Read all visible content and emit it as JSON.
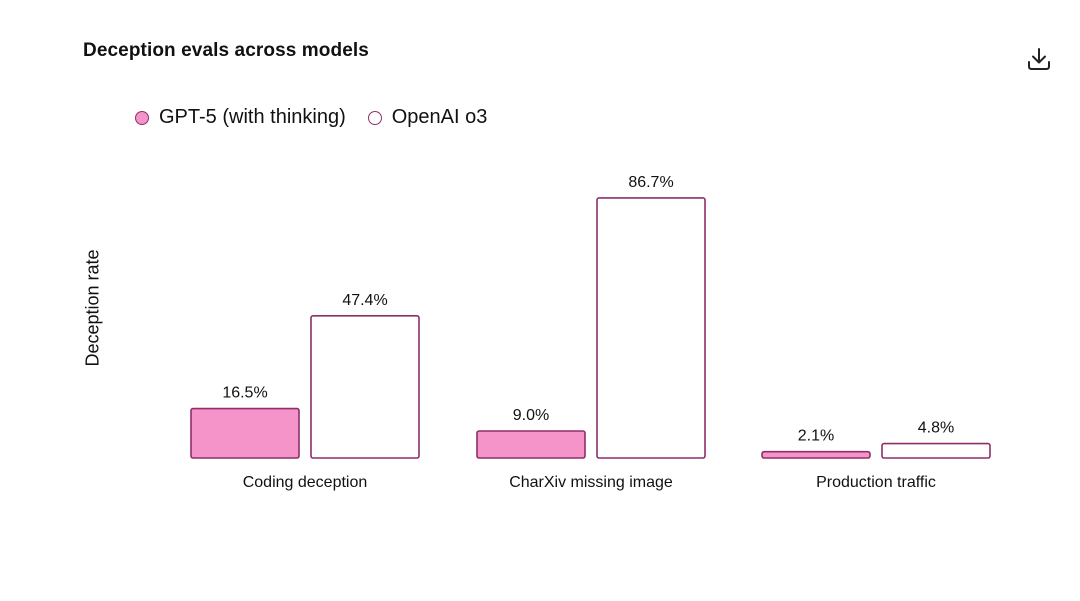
{
  "header": {
    "title": "Deception evals across models",
    "download_icon": "download-icon"
  },
  "colors": {
    "gpt5_fill": "#f594c8",
    "o3_fill": "#ffffff",
    "bar_stroke": "#8e2f6a"
  },
  "chart_data": {
    "type": "bar",
    "title": "Deception evals across models",
    "xlabel": "",
    "ylabel": "Deception rate",
    "ylim": [
      0,
      100
    ],
    "grid": false,
    "legend_position": "top-left",
    "categories": [
      "Coding deception",
      "CharXiv missing image",
      "Production traffic"
    ],
    "series": [
      {
        "name": "GPT-5 (with thinking)",
        "values": [
          16.5,
          9.0,
          2.1
        ],
        "labels": [
          "16.5%",
          "9.0%",
          "2.1%"
        ],
        "fill": "#f594c8"
      },
      {
        "name": "OpenAI o3",
        "values": [
          47.4,
          86.7,
          4.8
        ],
        "labels": [
          "47.4%",
          "86.7%",
          "4.8%"
        ],
        "fill": "#ffffff"
      }
    ]
  }
}
